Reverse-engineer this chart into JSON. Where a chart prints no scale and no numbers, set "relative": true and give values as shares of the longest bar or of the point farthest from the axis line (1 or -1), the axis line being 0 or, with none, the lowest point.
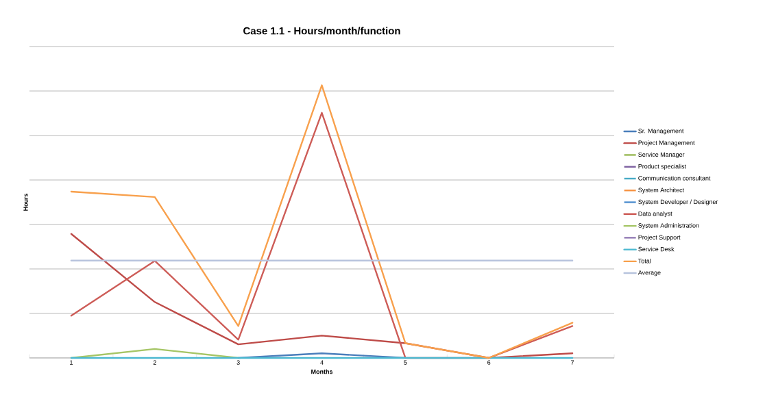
{
  "chart_data": {
    "type": "line",
    "title": "Case 1.1 - Hours/month/function",
    "xlabel": "Months",
    "ylabel": "Hours",
    "relative": true,
    "grid": "y",
    "legend": "right",
    "marker": "none",
    "line_style": "solid",
    "categories": [
      "1",
      "2",
      "3",
      "4",
      "5",
      "6",
      "7"
    ],
    "series": [
      {
        "name": "Sr. Management",
        "color": "#4a7ebb",
        "values": [
          null,
          null,
          0,
          0.017,
          0,
          null,
          null
        ]
      },
      {
        "name": "Project Management",
        "color": "#be4b48",
        "values": [
          0.455,
          0.205,
          0.05,
          0.082,
          0.054,
          0,
          0.017
        ]
      },
      {
        "name": "Service Manager",
        "color": "#98b954",
        "values": [
          null,
          null,
          null,
          null,
          null,
          null,
          null
        ]
      },
      {
        "name": "Product specialist",
        "color": "#7d60a0",
        "values": [
          null,
          null,
          null,
          null,
          null,
          null,
          null
        ]
      },
      {
        "name": "Communication consultant",
        "color": "#46aac5",
        "values": [
          null,
          null,
          null,
          null,
          null,
          null,
          null
        ]
      },
      {
        "name": "System Architect",
        "color": "#f69240",
        "values": [
          null,
          null,
          null,
          null,
          null,
          null,
          null
        ]
      },
      {
        "name": "System Developer / Designer",
        "color": "#4f8fcf",
        "values": [
          null,
          null,
          null,
          null,
          null,
          null,
          null
        ]
      },
      {
        "name": "Data analyst",
        "color": "#cd5c57",
        "values": [
          0.155,
          0.356,
          0.067,
          0.899,
          0,
          0,
          0.117
        ]
      },
      {
        "name": "System Administration",
        "color": "#a5c565",
        "values": [
          0,
          0.033,
          0,
          null,
          null,
          null,
          null
        ]
      },
      {
        "name": "Project Support",
        "color": "#9179b4",
        "values": [
          null,
          null,
          null,
          null,
          null,
          null,
          null
        ]
      },
      {
        "name": "Service Desk",
        "color": "#4bb8d0",
        "values": [
          0,
          0,
          0,
          0,
          0,
          0,
          0
        ]
      },
      {
        "name": "Total",
        "color": "#f8a04c",
        "values": [
          0.61,
          0.59,
          0.117,
          1,
          0.054,
          0,
          0.129
        ]
      },
      {
        "name": "Average",
        "color": "#b7c3dd",
        "values": [
          0.357,
          0.357,
          0.357,
          0.357,
          0.357,
          0.357,
          0.357
        ]
      }
    ]
  }
}
